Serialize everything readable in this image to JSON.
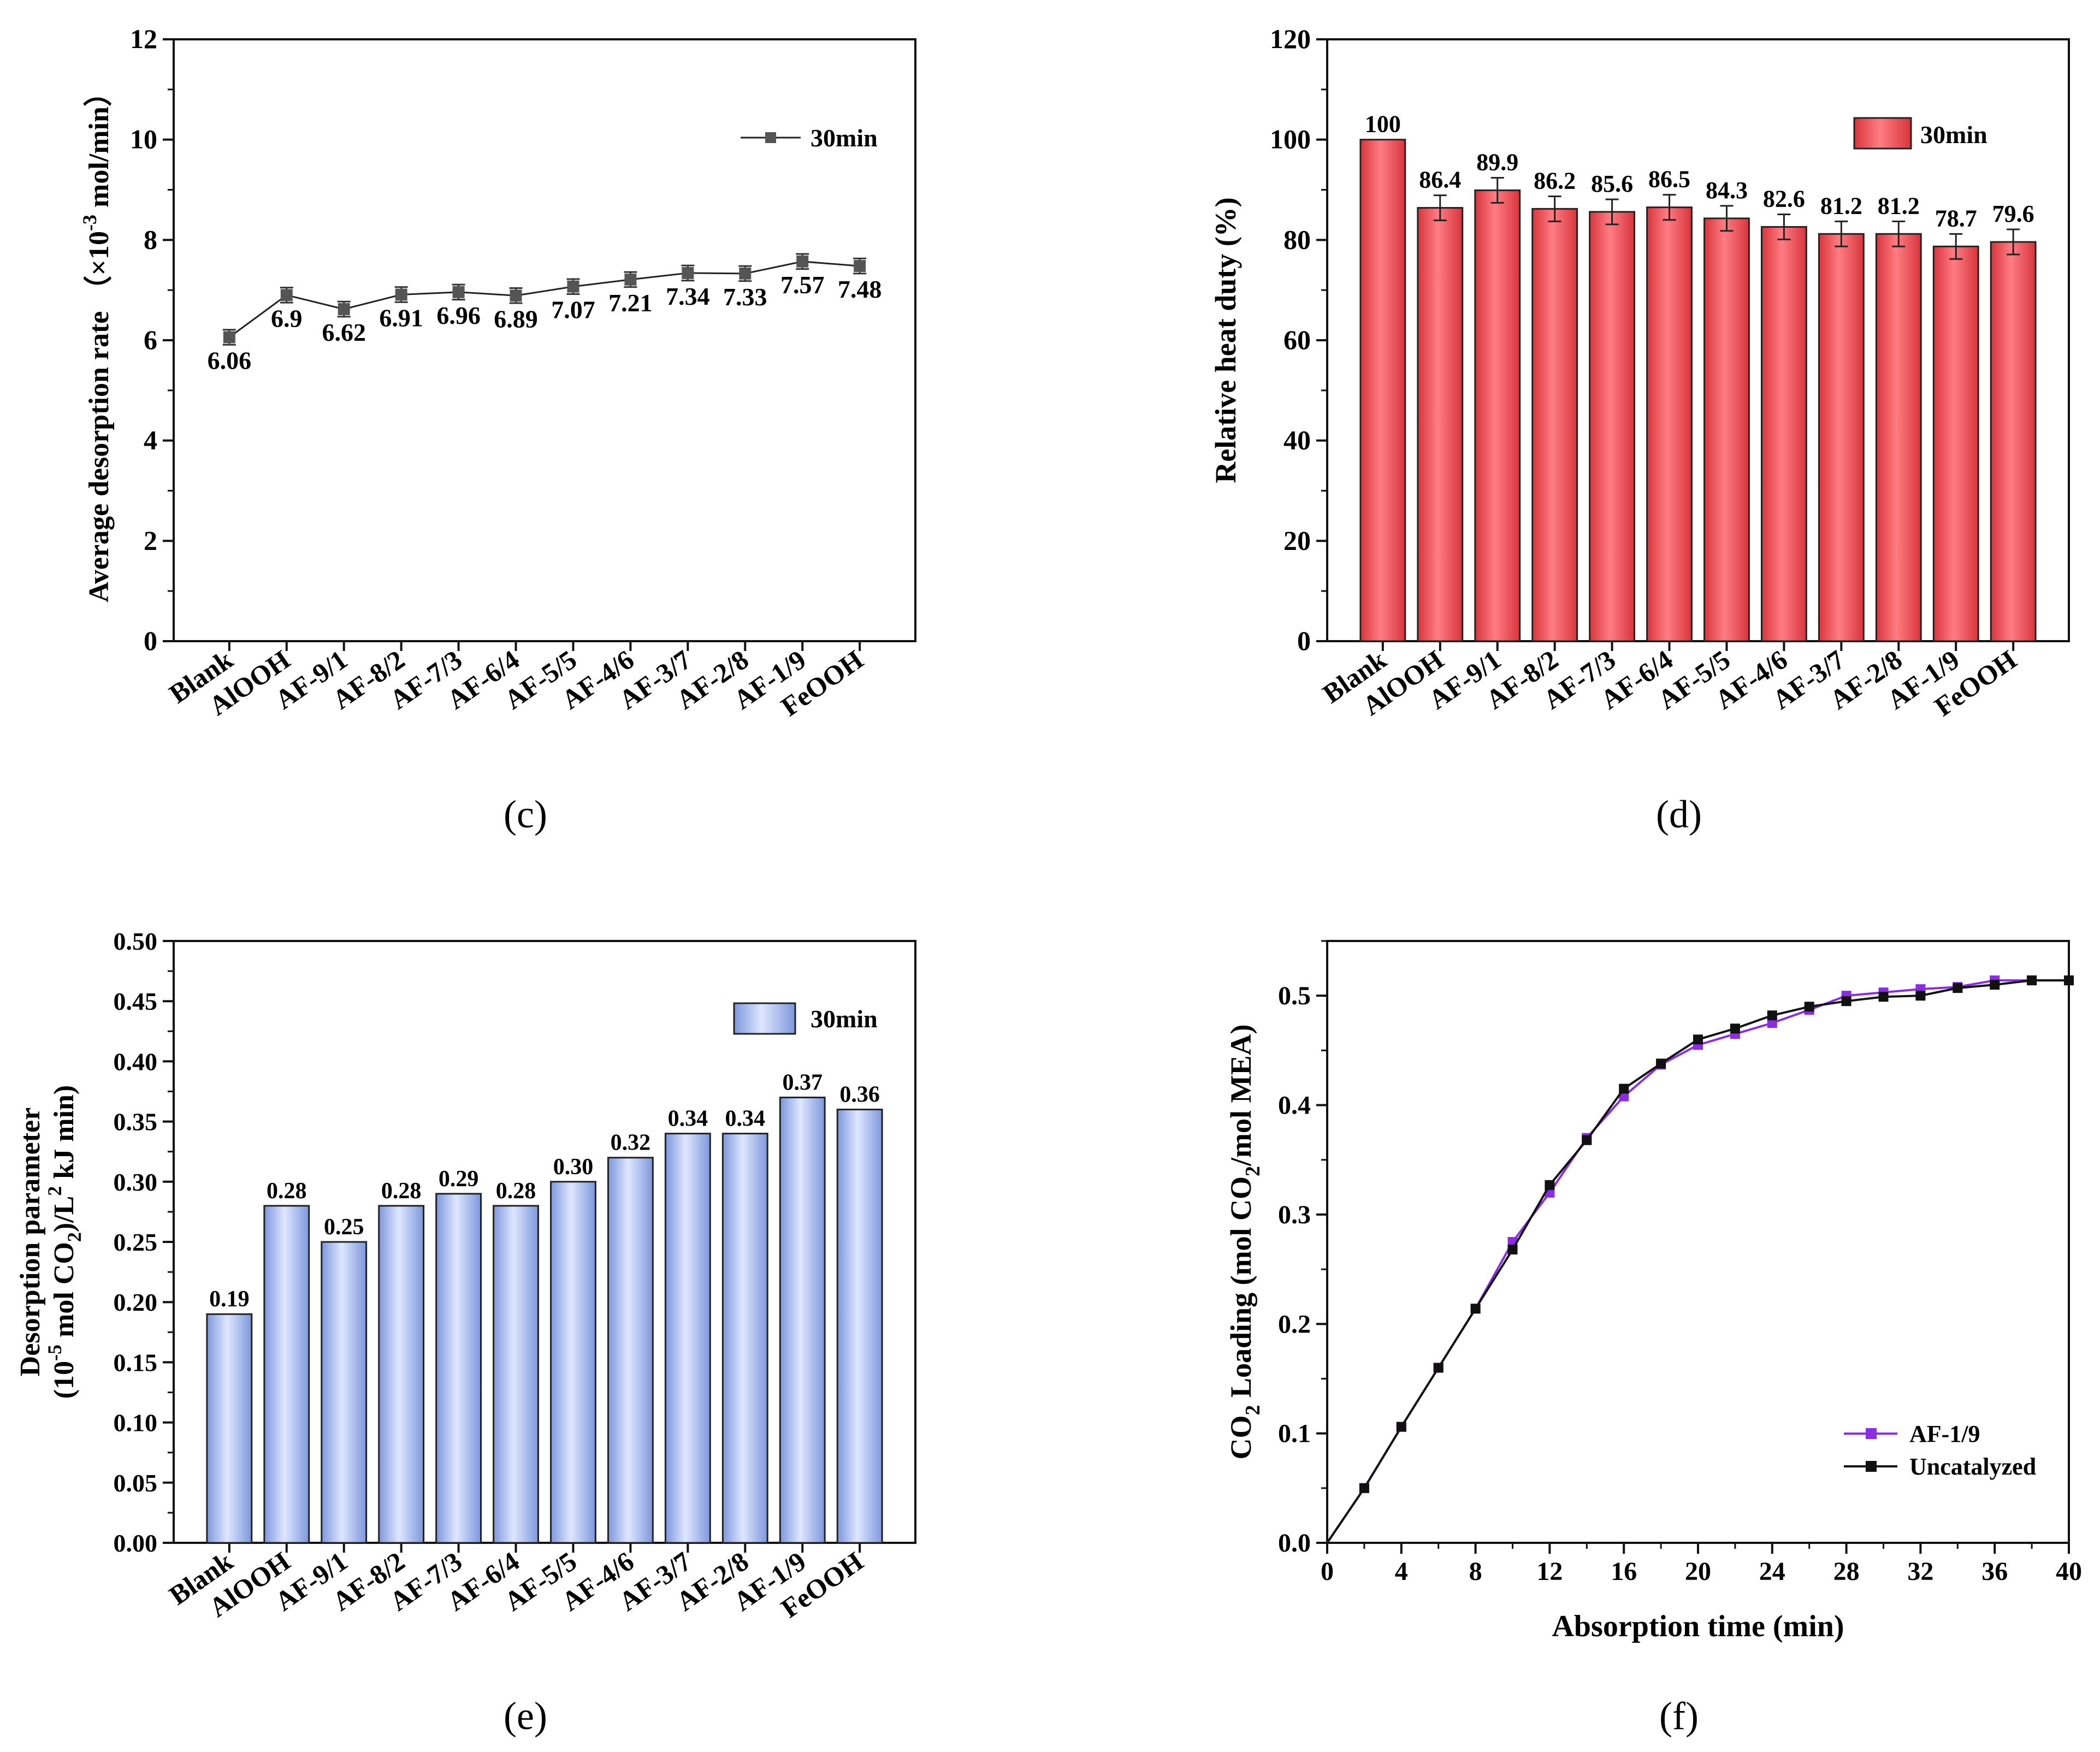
{
  "figure": {
    "panel_labels": [
      "(c)",
      "(d)",
      "(e)",
      "(f)"
    ],
    "colors": {
      "red_bar": "#e9434b",
      "red_bar_light": "#ff8a8f",
      "blue_bar": "#7f9be0",
      "blue_bar_light": "#dde6ff",
      "purple": "#8b2be2",
      "black": "#111111",
      "marker_grey": "#555555"
    }
  },
  "chart_data": [
    {
      "panel": "(c)",
      "type": "line",
      "title": "",
      "xlabel": "",
      "ylabel_parts": [
        "Average desorption rate （×10",
        "-3",
        " mol/min）"
      ],
      "categories": [
        "Blank",
        "AlOOH",
        "AF-9/1",
        "AF-8/2",
        "AF-7/3",
        "AF-6/4",
        "AF-5/5",
        "AF-4/6",
        "AF-3/7",
        "AF-2/8",
        "AF-1/9",
        "FeOOH"
      ],
      "series": [
        {
          "name": "30min",
          "values": [
            6.06,
            6.9,
            6.62,
            6.91,
            6.96,
            6.89,
            7.07,
            7.21,
            7.34,
            7.33,
            7.57,
            7.48
          ],
          "errors": [
            0.15,
            0.15,
            0.15,
            0.15,
            0.15,
            0.15,
            0.15,
            0.15,
            0.15,
            0.15,
            0.15,
            0.15
          ]
        }
      ],
      "data_labels": [
        "6.06",
        "6.9",
        "6.62",
        "6.91",
        "6.96",
        "6.89",
        "7.07",
        "7.21",
        "7.34",
        "7.33",
        "7.57",
        "7.48"
      ],
      "ylim": [
        0,
        12
      ],
      "yticks": [
        "0",
        "2",
        "4",
        "6",
        "8",
        "10",
        "12"
      ],
      "legend": "top-right"
    },
    {
      "panel": "(d)",
      "type": "bar",
      "title": "",
      "xlabel": "",
      "ylabel": "Relative heat duty (%)",
      "categories": [
        "Blank",
        "AlOOH",
        "AF-9/1",
        "AF-8/2",
        "AF-7/3",
        "AF-6/4",
        "AF-5/5",
        "AF-4/6",
        "AF-3/7",
        "AF-2/8",
        "AF-1/9",
        "FeOOH"
      ],
      "series": [
        {
          "name": "30min",
          "values": [
            100,
            86.4,
            89.9,
            86.2,
            85.6,
            86.5,
            84.3,
            82.6,
            81.2,
            81.2,
            78.7,
            79.6
          ],
          "errors": [
            0,
            2.5,
            2.5,
            2.5,
            2.5,
            2.5,
            2.5,
            2.5,
            2.5,
            2.5,
            2.5,
            2.5
          ]
        }
      ],
      "data_labels": [
        "100",
        "86.4",
        "89.9",
        "86.2",
        "85.6",
        "86.5",
        "84.3",
        "82.6",
        "81.2",
        "81.2",
        "78.7",
        "79.6"
      ],
      "ylim": [
        0,
        120
      ],
      "yticks": [
        "0",
        "20",
        "40",
        "60",
        "80",
        "100",
        "120"
      ],
      "legend": "top-right"
    },
    {
      "panel": "(e)",
      "type": "bar",
      "title": "",
      "xlabel": "",
      "ylabel_line1": "Desorption parameter",
      "ylabel_line2_parts": [
        "(10",
        "-5",
        " mol CO",
        "2",
        ")/L",
        "2",
        " kJ min)"
      ],
      "categories": [
        "Blank",
        "AlOOH",
        "AF-9/1",
        "AF-8/2",
        "AF-7/3",
        "AF-6/4",
        "AF-5/5",
        "AF-4/6",
        "AF-3/7",
        "AF-2/8",
        "AF-1/9",
        "FeOOH"
      ],
      "series": [
        {
          "name": "30min",
          "values": [
            0.19,
            0.28,
            0.25,
            0.28,
            0.29,
            0.28,
            0.3,
            0.32,
            0.34,
            0.34,
            0.37,
            0.36
          ]
        }
      ],
      "data_labels": [
        "0.19",
        "0.28",
        "0.25",
        "0.28",
        "0.29",
        "0.28",
        "0.30",
        "0.32",
        "0.34",
        "0.34",
        "0.37",
        "0.36"
      ],
      "ylim": [
        0,
        0.5
      ],
      "yticks": [
        "0.00",
        "0.05",
        "0.10",
        "0.15",
        "0.20",
        "0.25",
        "0.30",
        "0.35",
        "0.40",
        "0.45",
        "0.50"
      ],
      "legend": "top-right"
    },
    {
      "panel": "(f)",
      "type": "line",
      "title": "",
      "xlabel": "Absorption time (min)",
      "ylabel_parts": [
        "CO",
        "2",
        " Loading (mol CO",
        "2",
        "/mol MEA)"
      ],
      "x": [
        0,
        2,
        4,
        6,
        8,
        10,
        12,
        14,
        16,
        18,
        20,
        22,
        24,
        26,
        28,
        30,
        32,
        34,
        36,
        38,
        40
      ],
      "series": [
        {
          "name": "AF-1/9",
          "values": [
            0,
            0.05,
            0.106,
            0.16,
            0.214,
            0.275,
            0.32,
            0.37,
            0.408,
            0.437,
            0.455,
            0.465,
            0.475,
            0.487,
            0.5,
            0.503,
            0.506,
            0.508,
            0.514,
            0.514,
            0.514
          ]
        },
        {
          "name": "Uncatalyzed",
          "values": [
            0,
            0.05,
            0.106,
            0.16,
            0.214,
            0.268,
            0.327,
            0.368,
            0.415,
            0.438,
            0.46,
            0.47,
            0.482,
            0.49,
            0.495,
            0.499,
            0.5,
            0.507,
            0.51,
            0.514,
            0.514
          ]
        }
      ],
      "xlim": [
        0,
        40
      ],
      "ylim": [
        0,
        0.55
      ],
      "xticks": [
        "0",
        "4",
        "8",
        "12",
        "16",
        "20",
        "24",
        "28",
        "32",
        "36",
        "40"
      ],
      "yticks": [
        "0.0",
        "0.1",
        "0.2",
        "0.3",
        "0.4",
        "0.5"
      ],
      "legend": "bottom-right"
    }
  ]
}
